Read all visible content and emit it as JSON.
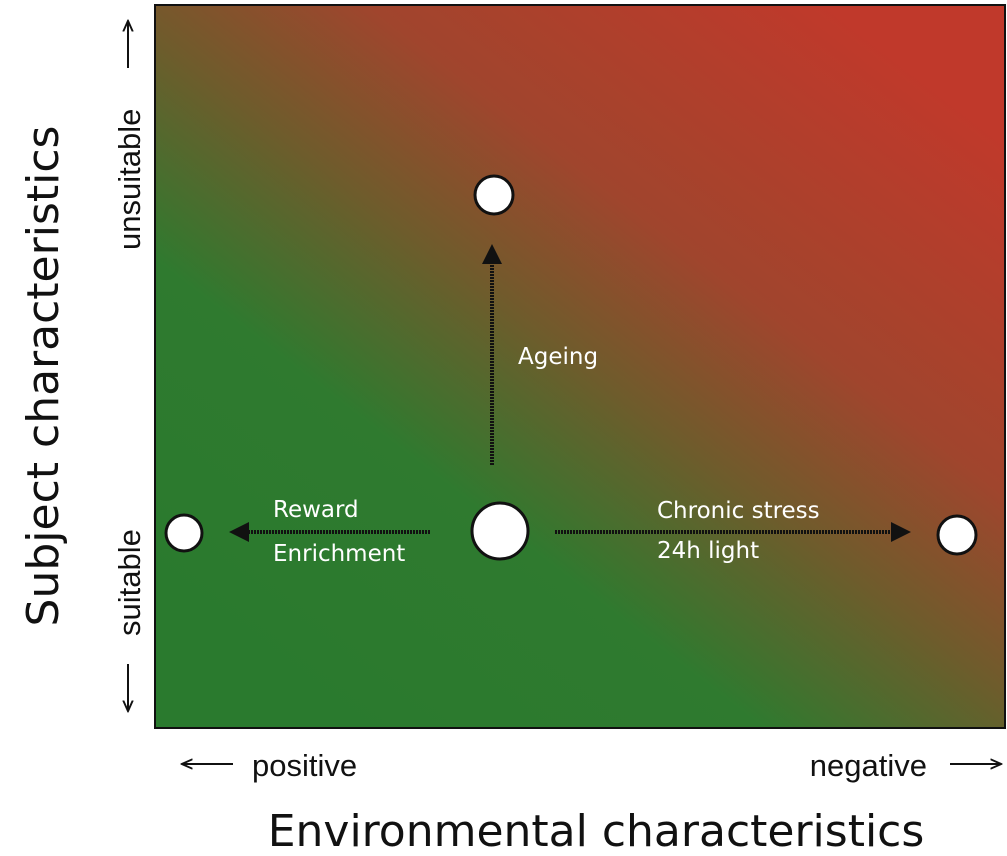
{
  "axes": {
    "x_title": "Environmental characteristics",
    "y_title": "Subject characteristics",
    "x_low_label": "positive",
    "x_high_label": "negative",
    "y_low_label": "suitable",
    "y_high_label": "unsuitable"
  },
  "arrows": {
    "up_label": "Ageing",
    "left_label_1": "Reward",
    "left_label_2": "Enrichment",
    "right_label_1": "Chronic stress",
    "right_label_2": "24h light"
  },
  "colors": {
    "good": "#2a7a2e",
    "bad": "#c0392b",
    "middle": "#7a5a2a",
    "arrow": "#111111",
    "node_fill": "#ffffff"
  }
}
